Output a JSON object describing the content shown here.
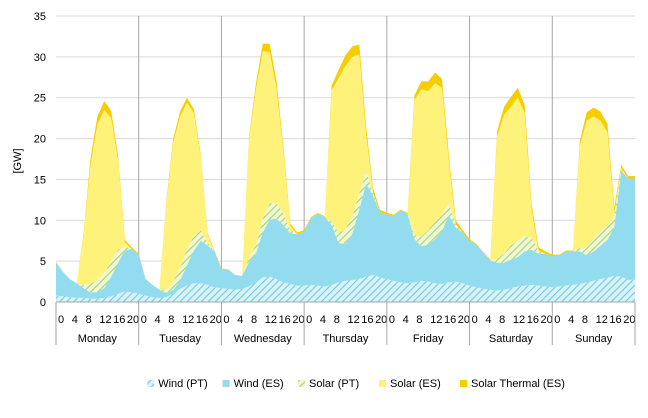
{
  "chart_data": {
    "type": "area",
    "stacked": true,
    "ylabel": "[GW]",
    "ylim": [
      0,
      35
    ],
    "yticks": [
      0,
      5,
      10,
      15,
      20,
      25,
      30,
      35
    ],
    "grid": "horizontal",
    "legend_position": "bottom",
    "x_hour_ticks": [
      "0",
      "4",
      "8",
      "12",
      "16",
      "20"
    ],
    "days": [
      "Monday",
      "Tuesday",
      "Wednesday",
      "Thursday",
      "Friday",
      "Saturday",
      "Sunday"
    ],
    "hours_per_day": 24,
    "sample_every_hours": 2,
    "series": [
      {
        "name": "Wind (PT)",
        "color": "#7fd4e6",
        "pattern": "hatch",
        "values": [
          0.8,
          0.7,
          0.6,
          0.5,
          0.5,
          0.4,
          0.4,
          0.5,
          0.7,
          1.0,
          1.3,
          1.2,
          1.0,
          0.8,
          0.6,
          0.5,
          0.6,
          1.0,
          1.6,
          2.0,
          2.3,
          2.3,
          2.1,
          1.8,
          1.7,
          1.6,
          1.5,
          1.6,
          1.9,
          2.4,
          3.0,
          3.1,
          2.8,
          2.4,
          2.2,
          2.0,
          2.0,
          2.1,
          2.0,
          1.9,
          2.1,
          2.4,
          2.6,
          2.7,
          2.8,
          3.1,
          3.3,
          3.0,
          2.8,
          2.6,
          2.4,
          2.3,
          2.4,
          2.6,
          2.5,
          2.3,
          2.2,
          2.4,
          2.5,
          2.3,
          2.0,
          1.8,
          1.6,
          1.5,
          1.4,
          1.5,
          1.7,
          1.9,
          2.0,
          2.1,
          2.0,
          1.9,
          1.8,
          1.9,
          2.0,
          2.1,
          2.2,
          2.4,
          2.6,
          2.8,
          3.0,
          3.2,
          3.1,
          2.7
        ]
      },
      {
        "name": "Wind (ES)",
        "color": "#93dcef",
        "pattern": "solid",
        "values": [
          4.0,
          3.0,
          2.2,
          1.8,
          1.2,
          0.8,
          0.8,
          1.2,
          2.4,
          3.8,
          5.0,
          5.3,
          4.8,
          2.0,
          1.5,
          1.0,
          0.5,
          0.5,
          1.0,
          2.5,
          4.0,
          5.2,
          4.8,
          4.4,
          2.3,
          2.4,
          1.8,
          1.6,
          3.0,
          3.5,
          5.5,
          7.0,
          7.4,
          7.0,
          6.2,
          6.3,
          6.6,
          8.2,
          8.8,
          8.5,
          7.3,
          4.8,
          4.5,
          5.7,
          8.5,
          11.4,
          9.7,
          8.0,
          7.9,
          8.0,
          8.8,
          8.5,
          5.3,
          4.2,
          4.5,
          5.4,
          6.5,
          8.2,
          6.6,
          6.2,
          5.5,
          5.2,
          4.4,
          3.6,
          3.4,
          3.3,
          3.5,
          3.6,
          4.2,
          4.3,
          3.9,
          4.0,
          3.8,
          3.8,
          4.2,
          4.1,
          4.0,
          3.3,
          3.6,
          4.1,
          4.6,
          6.0,
          13.0,
          12.4
        ]
      },
      {
        "name": "Solar (PT)",
        "color": "#c9e6a0",
        "pattern": "hatch",
        "values": [
          0,
          0,
          0,
          0,
          0.4,
          1.0,
          1.5,
          1.8,
          1.9,
          1.6,
          0.5,
          0,
          0,
          0,
          0,
          0,
          0.4,
          1.0,
          1.6,
          1.9,
          1.8,
          1.3,
          0.3,
          0,
          0,
          0,
          0,
          0,
          0.5,
          1.1,
          1.7,
          2.0,
          1.9,
          1.4,
          0.4,
          0,
          0,
          0,
          0,
          0,
          0.5,
          1.2,
          1.8,
          2.1,
          2.0,
          1.5,
          0.4,
          0,
          0,
          0,
          0,
          0,
          0.5,
          1.2,
          1.8,
          2.1,
          2.0,
          1.5,
          0.4,
          0,
          0,
          0,
          0,
          0,
          0.5,
          1.1,
          1.7,
          2.0,
          1.9,
          1.4,
          0.4,
          0,
          0,
          0,
          0,
          0,
          0.4,
          1.0,
          1.5,
          1.8,
          1.7,
          1.3,
          0.3,
          0
        ]
      },
      {
        "name": "Solar (ES)",
        "color": "#fff27a",
        "pattern": "solid",
        "values": [
          0,
          0,
          0,
          0,
          6.0,
          14.5,
          19.0,
          20.0,
          17.5,
          11.0,
          0.5,
          0,
          0,
          0,
          0,
          0,
          10.5,
          17.0,
          18.5,
          18.0,
          15.0,
          9.0,
          1.0,
          0,
          0,
          0,
          0,
          0,
          14.5,
          19.0,
          20.5,
          18.5,
          14.0,
          7.5,
          0.5,
          0,
          0,
          0,
          0,
          0,
          16.0,
          19.0,
          20.0,
          19.5,
          17.0,
          4.5,
          0,
          0,
          0,
          0,
          0,
          0,
          16.5,
          18.0,
          17.0,
          17.0,
          15.5,
          5.0,
          0,
          0,
          0,
          0,
          0,
          0,
          15.0,
          17.0,
          17.0,
          17.5,
          15.0,
          3.5,
          0,
          0,
          0,
          0,
          0,
          0,
          12.5,
          15.5,
          15.0,
          13.5,
          11.5,
          0.5,
          0,
          0
        ]
      },
      {
        "name": "Solar Thermal (ES)",
        "color": "#f7cc00",
        "pattern": "solid",
        "values": [
          0.1,
          0,
          0,
          0,
          0.3,
          0.8,
          1.0,
          1.1,
          0.9,
          0.5,
          0.3,
          0.2,
          0.1,
          0,
          0,
          0,
          0.3,
          0.5,
          0.6,
          0.6,
          0.5,
          0.3,
          0.2,
          0.1,
          0.1,
          0,
          0,
          0,
          0.3,
          0.7,
          0.9,
          1.0,
          0.9,
          0.6,
          0.3,
          0.2,
          0.2,
          0.1,
          0.1,
          0.1,
          0.6,
          1.0,
          1.3,
          1.3,
          1.2,
          0.9,
          0.5,
          0.3,
          0.2,
          0.1,
          0.1,
          0.1,
          0.6,
          1.0,
          1.2,
          1.3,
          1.1,
          0.8,
          0.5,
          0.3,
          0.2,
          0.1,
          0.1,
          0.1,
          0.6,
          1.0,
          1.2,
          1.2,
          1.0,
          0.7,
          0.4,
          0.3,
          0.2,
          0.1,
          0.1,
          0.1,
          0.6,
          1.0,
          1.1,
          1.1,
          1.0,
          0.6,
          0.4,
          0.3
        ]
      }
    ]
  }
}
